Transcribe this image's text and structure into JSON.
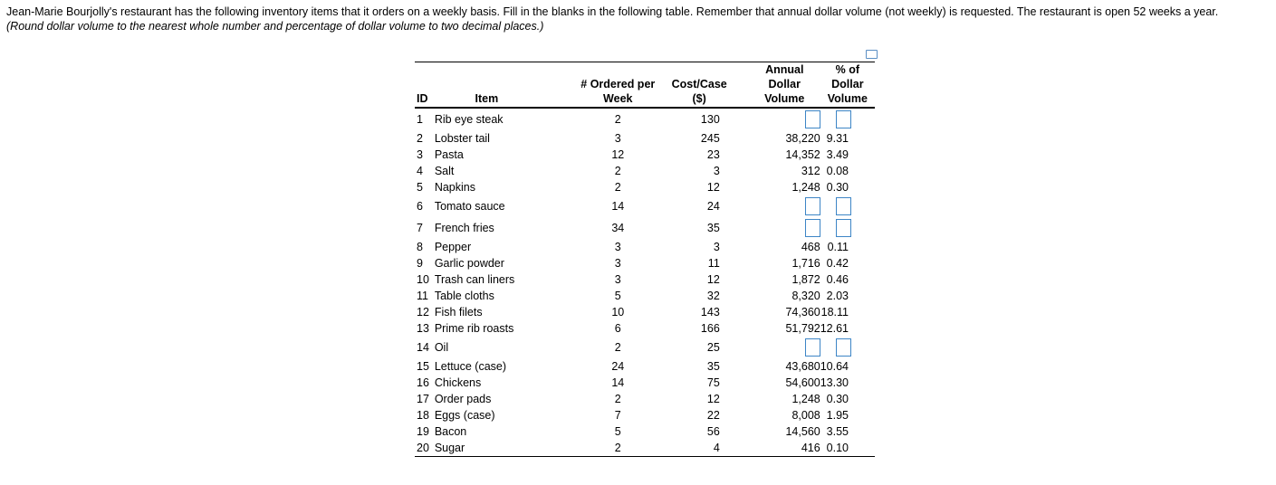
{
  "instructions": {
    "line1": "Jean-Marie Bourjolly's restaurant has the following inventory items that it orders on a weekly basis. Fill in the blanks in the following table. Remember that annual dollar volume (not weekly) is requested. The restaurant is open 52 weeks a year.",
    "line2": "(Round dollar volume to the nearest whole number and percentage of dollar volume to two decimal places.)"
  },
  "table": {
    "headers": [
      [
        "ID"
      ],
      [
        "Item"
      ],
      [
        "# Ordered per",
        "Week"
      ],
      [
        "Cost/Case",
        "($)"
      ],
      [
        "Annual Dollar",
        "Volume"
      ],
      [
        "% of Dollar",
        "Volume"
      ]
    ],
    "rows": [
      [
        "1",
        "Rib eye steak",
        "2",
        "130",
        null,
        null
      ],
      [
        "2",
        "Lobster tail",
        "3",
        "245",
        "38,220",
        "9.31"
      ],
      [
        "3",
        "Pasta",
        "12",
        "23",
        "14,352",
        "3.49"
      ],
      [
        "4",
        "Salt",
        "2",
        "3",
        "312",
        "0.08"
      ],
      [
        "5",
        "Napkins",
        "2",
        "12",
        "1,248",
        "0.30"
      ],
      [
        "6",
        "Tomato sauce",
        "14",
        "24",
        null,
        null
      ],
      [
        "7",
        "French fries",
        "34",
        "35",
        null,
        null
      ],
      [
        "8",
        "Pepper",
        "3",
        "3",
        "468",
        "0.11"
      ],
      [
        "9",
        "Garlic powder",
        "3",
        "11",
        "1,716",
        "0.42"
      ],
      [
        "10",
        "Trash can liners",
        "3",
        "12",
        "1,872",
        "0.46"
      ],
      [
        "11",
        "Table cloths",
        "5",
        "32",
        "8,320",
        "2.03"
      ],
      [
        "12",
        "Fish filets",
        "10",
        "143",
        "74,360",
        "18.11"
      ],
      [
        "13",
        "Prime rib roasts",
        "6",
        "166",
        "51,792",
        "12.61"
      ],
      [
        "14",
        "Oil",
        "2",
        "25",
        null,
        null
      ],
      [
        "15",
        "Lettuce (case)",
        "24",
        "35",
        "43,680",
        "10.64"
      ],
      [
        "16",
        "Chickens",
        "14",
        "75",
        "54,600",
        "13.30"
      ],
      [
        "17",
        "Order pads",
        "2",
        "12",
        "1,248",
        "0.30"
      ],
      [
        "18",
        "Eggs (case)",
        "7",
        "22",
        "8,008",
        "1.95"
      ],
      [
        "19",
        "Bacon",
        "5",
        "56",
        "14,560",
        "3.55"
      ],
      [
        "20",
        "Sugar",
        "2",
        "4",
        "416",
        "0.10"
      ]
    ]
  }
}
